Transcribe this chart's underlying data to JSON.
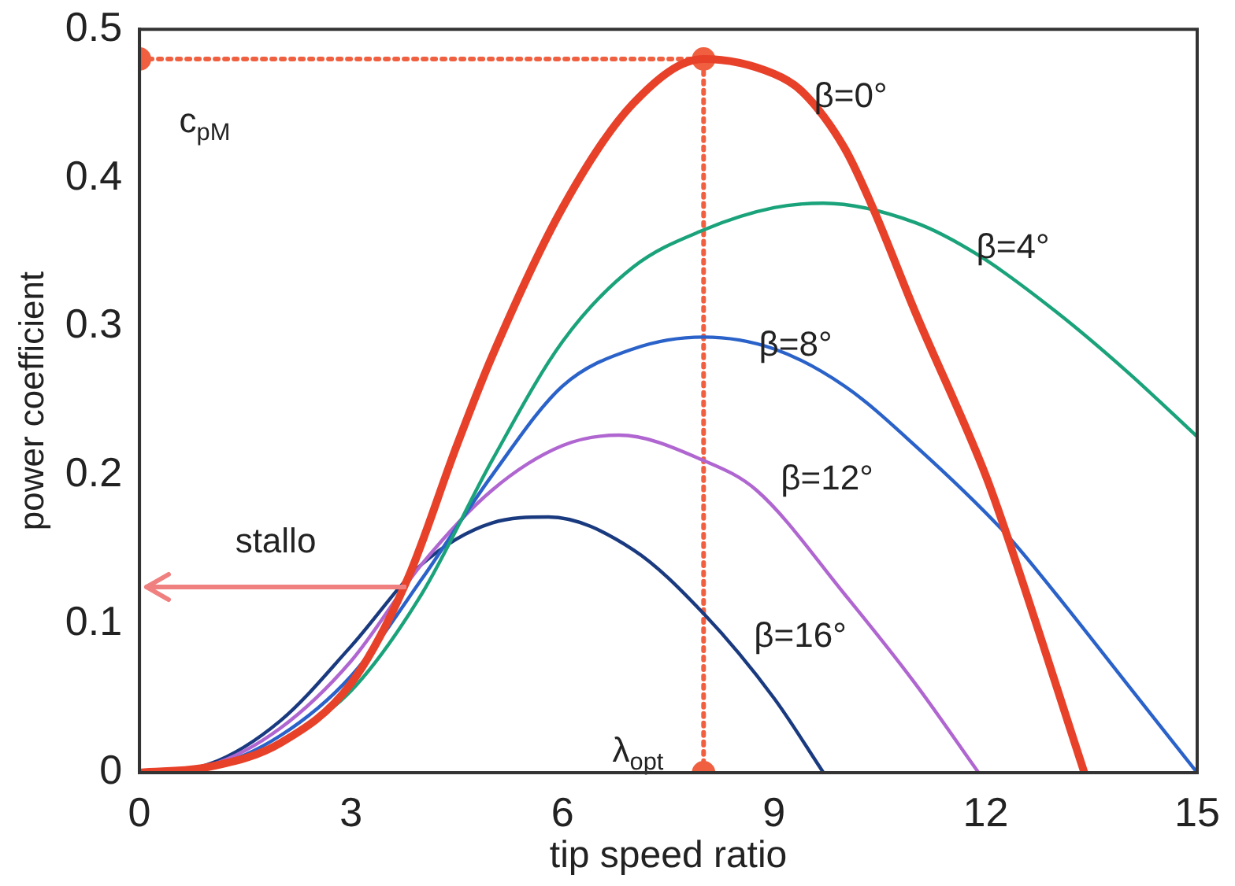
{
  "chart_data": {
    "type": "line",
    "xlabel": "tip speed ratio",
    "ylabel": "power coefficient",
    "xlim": [
      0,
      15
    ],
    "xticks": [
      0,
      3,
      6,
      9,
      12,
      15
    ],
    "ylim": [
      0,
      0.5
    ],
    "yticks": [
      0,
      0.1,
      0.2,
      0.3,
      0.4,
      0.5
    ],
    "grid": false,
    "legend": false,
    "marker": "none",
    "line_style": "solid",
    "series": [
      {
        "color": "#e8412a",
        "x": [
          0,
          1,
          2,
          3,
          3.8,
          4.5,
          5,
          6,
          7,
          8,
          9,
          9.4,
          10,
          10.4,
          11,
          12,
          12.3,
          13.4
        ],
        "values": [
          0,
          0.004,
          0.02,
          0.06,
          0.13,
          0.22,
          0.28,
          0.38,
          0.45,
          0.48,
          0.47,
          0.458,
          0.42,
          0.38,
          0.31,
          0.2,
          0.16,
          0
        ]
      },
      {
        "color": "#1aa37a",
        "x": [
          2,
          3,
          4,
          5,
          6,
          7,
          8,
          9,
          9.7,
          11,
          11.9,
          13,
          14,
          15
        ],
        "values": [
          0.02,
          0.055,
          0.12,
          0.21,
          0.29,
          0.34,
          0.365,
          0.38,
          0.383,
          0.37,
          0.348,
          0.31,
          0.27,
          0.226
        ]
      },
      {
        "color": "#2a62c9",
        "x": [
          0,
          1,
          2,
          3,
          4,
          5,
          6,
          7,
          8,
          9,
          10,
          11,
          12.3,
          13,
          14,
          15
        ],
        "values": [
          0,
          0.004,
          0.025,
          0.065,
          0.13,
          0.2,
          0.26,
          0.285,
          0.293,
          0.285,
          0.26,
          0.22,
          0.16,
          0.12,
          0.06,
          0
        ]
      },
      {
        "color": "#b066d0",
        "x": [
          0,
          1,
          2,
          3,
          4,
          5,
          6,
          6.8,
          8,
          8.75,
          10,
          11,
          11.9
        ],
        "values": [
          0,
          0.005,
          0.03,
          0.075,
          0.14,
          0.19,
          0.22,
          0.227,
          0.21,
          0.19,
          0.12,
          0.06,
          0
        ]
      },
      {
        "color": "#1a3a80",
        "x": [
          0,
          1,
          2,
          3,
          4,
          5,
          5.8,
          7,
          8,
          9,
          9.7
        ],
        "values": [
          0,
          0.006,
          0.035,
          0.085,
          0.14,
          0.168,
          0.172,
          0.15,
          0.107,
          0.05,
          0
        ]
      },
      {
        "color": "#f06040",
        "x": [
          0,
          8,
          8
        ],
        "values": [
          0.48,
          0.48,
          0
        ],
        "marker": "circle",
        "line_style": "dotted"
      }
    ],
    "annotations": [
      "β=0°",
      "β=4°",
      "β=8°",
      "β=12°",
      "β=16°",
      "c$_{pM}$",
      "λ$_{opt}$",
      "stallo"
    ]
  }
}
